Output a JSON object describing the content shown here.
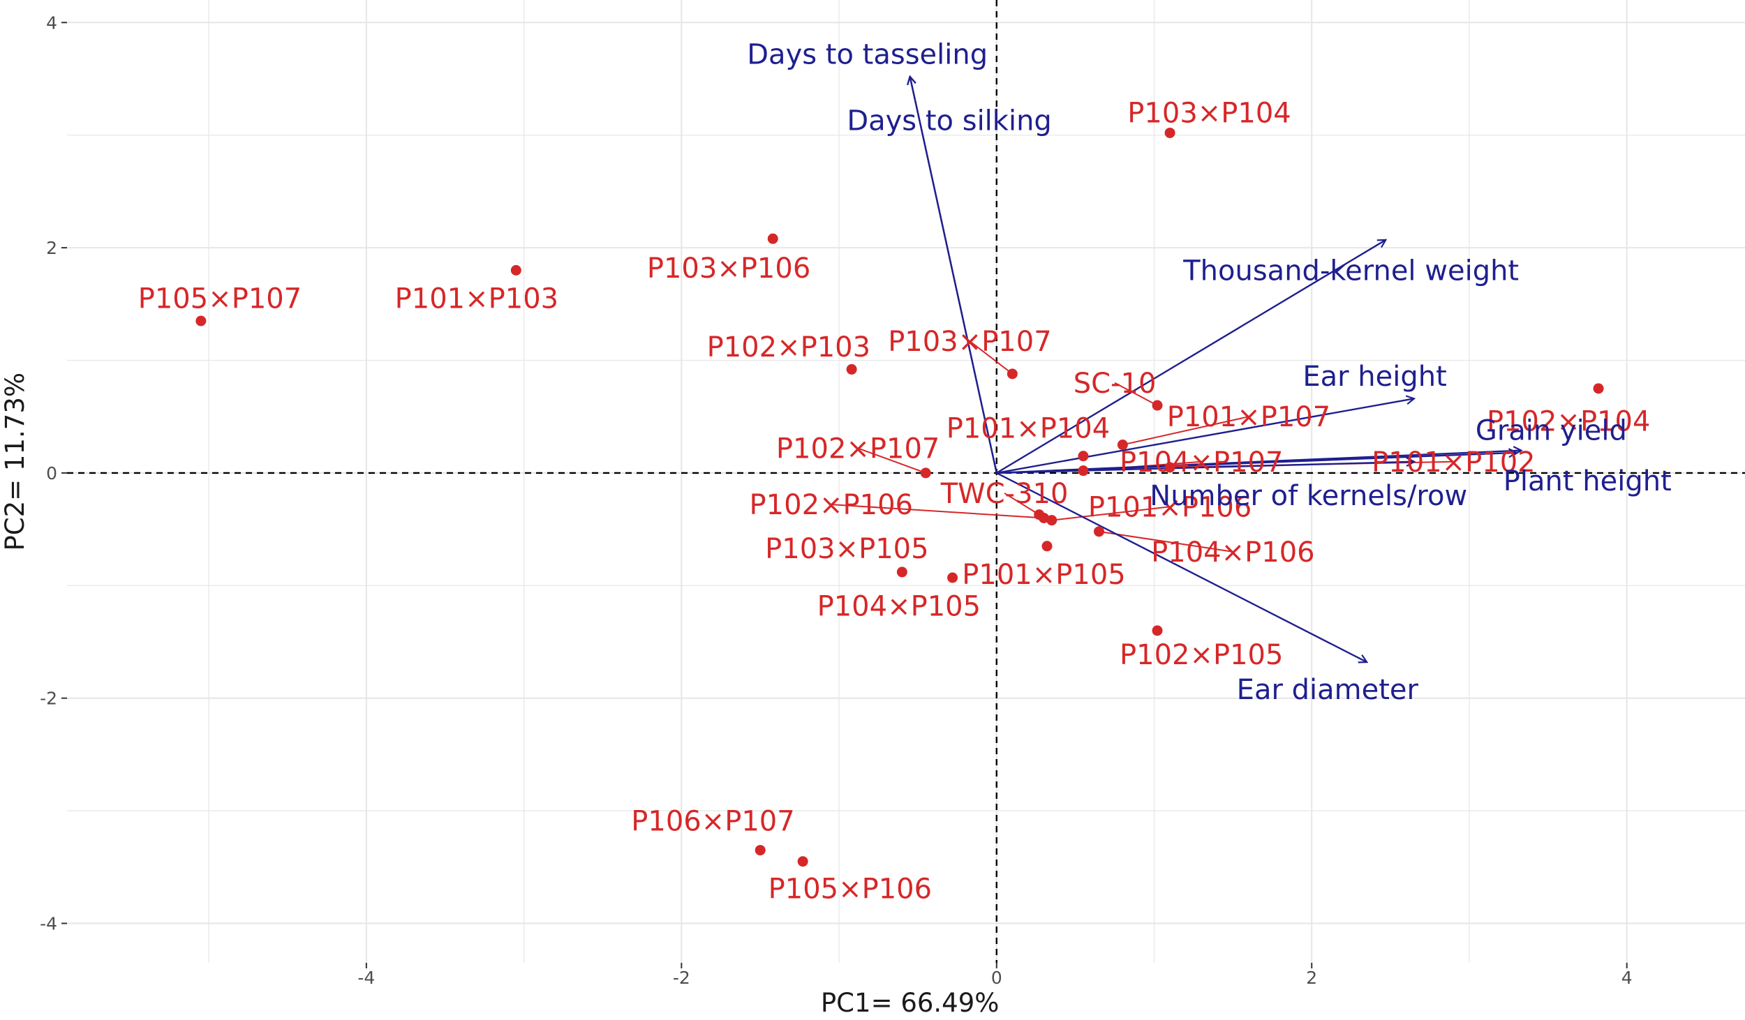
{
  "chart_data": {
    "type": "scatter",
    "subtype": "pca-biplot",
    "title": "",
    "xlabel": "PC1= 66.49%",
    "ylabel": "PC2=  11.73%",
    "xlim": [
      -5.9,
      4.75
    ],
    "ylim": [
      -4.35,
      4.2
    ],
    "xticks": [
      -4,
      -2,
      0,
      2,
      4
    ],
    "yticks": [
      -4,
      -2,
      0,
      2,
      4
    ],
    "grid": true,
    "colors": {
      "points": "#d62728",
      "loadings": "#1f1f8f",
      "grid": "#e6e6e6",
      "reference": "#000000"
    },
    "genotypes": [
      {
        "name": "P105×P107",
        "x": -5.05,
        "y": 1.35,
        "lx": -4.93,
        "ly": 1.55
      },
      {
        "name": "P101×P103",
        "x": -3.05,
        "y": 1.8,
        "lx": -3.3,
        "ly": 1.55
      },
      {
        "name": "P103×P106",
        "x": -1.42,
        "y": 2.08,
        "lx": -1.7,
        "ly": 1.82
      },
      {
        "name": "P102×P103",
        "x": -0.92,
        "y": 0.92,
        "lx": -1.32,
        "ly": 1.12
      },
      {
        "name": "P103×P104",
        "x": 1.1,
        "y": 3.02,
        "lx": 1.35,
        "ly": 3.2
      },
      {
        "name": "P103×P107",
        "x": 0.1,
        "y": 0.88,
        "lx": -0.17,
        "ly": 1.17,
        "leader": true
      },
      {
        "name": "SC-10",
        "x": 1.02,
        "y": 0.6,
        "lx": 0.75,
        "ly": 0.8,
        "leader": true
      },
      {
        "name": "P101×P104",
        "x": 0.55,
        "y": 0.15,
        "lx": 0.2,
        "ly": 0.4
      },
      {
        "name": "P101×P107",
        "x": 0.8,
        "y": 0.25,
        "lx": 1.6,
        "ly": 0.5,
        "leader": true
      },
      {
        "name": "P104×P107",
        "x": 0.55,
        "y": 0.02,
        "lx": 1.3,
        "ly": 0.1,
        "leader": true
      },
      {
        "name": "P101×P102",
        "x": 1.1,
        "y": 0.05,
        "lx": 2.9,
        "ly": 0.1,
        "leader": true
      },
      {
        "name": "P102×P104",
        "x": 3.82,
        "y": 0.75,
        "lx": 3.63,
        "ly": 0.46
      },
      {
        "name": "P102×P107",
        "x": -0.45,
        "y": 0.0,
        "lx": -0.88,
        "ly": 0.22,
        "leader": true
      },
      {
        "name": "TWC-310",
        "x": 0.27,
        "y": -0.37,
        "lx": 0.05,
        "ly": -0.18,
        "leader": true
      },
      {
        "name": "P102×P106",
        "x": 0.3,
        "y": -0.4,
        "lx": -1.05,
        "ly": -0.28,
        "leader": true
      },
      {
        "name": "P101×P106",
        "x": 0.35,
        "y": -0.42,
        "lx": 1.1,
        "ly": -0.3,
        "leader": true
      },
      {
        "name": "P104×P106",
        "x": 0.65,
        "y": -0.52,
        "lx": 1.5,
        "ly": -0.7,
        "leader": true
      },
      {
        "name": "P101×P105",
        "x": 0.32,
        "y": -0.65,
        "lx": 0.3,
        "ly": -0.9
      },
      {
        "name": "P103×P105",
        "x": -0.6,
        "y": -0.88,
        "lx": -0.95,
        "ly": -0.67
      },
      {
        "name": "P104×P105",
        "x": -0.28,
        "y": -0.93,
        "lx": -0.62,
        "ly": -1.18
      },
      {
        "name": "P102×P105",
        "x": 1.02,
        "y": -1.4,
        "lx": 1.3,
        "ly": -1.61
      },
      {
        "name": "P106×P107",
        "x": -1.5,
        "y": -3.35,
        "lx": -1.8,
        "ly": -3.09
      },
      {
        "name": "P105×P106",
        "x": -1.23,
        "y": -3.45,
        "lx": -0.93,
        "ly": -3.69
      }
    ],
    "loadings": [
      {
        "name": "Days to tasseling",
        "x": -0.55,
        "y": 3.52,
        "lx": -0.82,
        "ly": 3.72
      },
      {
        "name": "Days to  silking",
        "x": -0.55,
        "y": 3.52,
        "lx": -0.3,
        "ly": 3.13
      },
      {
        "name": "Thousand-kernel weight",
        "x": 2.47,
        "y": 2.07,
        "lx": 2.25,
        "ly": 1.8
      },
      {
        "name": "Ear height",
        "x": 2.65,
        "y": 0.66,
        "lx": 2.4,
        "ly": 0.86
      },
      {
        "name": "Grain yield",
        "x": 3.33,
        "y": 0.2,
        "lx": 3.52,
        "ly": 0.38
      },
      {
        "name": "Plant height",
        "x": 3.3,
        "y": 0.18,
        "lx": 3.75,
        "ly": -0.07
      },
      {
        "name": "Number of kernels/row",
        "x": 2.65,
        "y": 0.1,
        "lx": 1.98,
        "ly": -0.2
      },
      {
        "name": "Ear diameter",
        "x": 2.35,
        "y": -1.68,
        "lx": 2.1,
        "ly": -1.92
      }
    ]
  }
}
